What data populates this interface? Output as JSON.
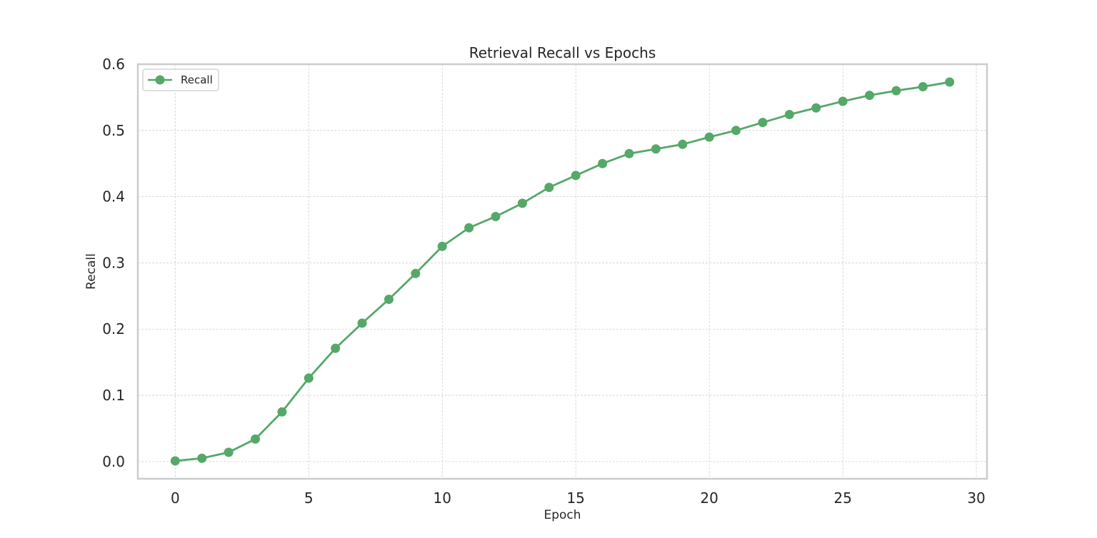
{
  "chart_data": {
    "type": "line",
    "title": "Retrieval Recall vs Epochs",
    "xlabel": "Epoch",
    "ylabel": "Recall",
    "xlim": [
      -1.4,
      30.4
    ],
    "ylim": [
      -0.026,
      0.6
    ],
    "xticks": [
      0,
      5,
      10,
      15,
      20,
      25,
      30
    ],
    "yticks": [
      0.0,
      0.1,
      0.2,
      0.3,
      0.4,
      0.5,
      0.6
    ],
    "ytick_labels": [
      "0.0",
      "0.1",
      "0.2",
      "0.3",
      "0.4",
      "0.5",
      "0.6"
    ],
    "grid": true,
    "legend_position": "top-left",
    "series": [
      {
        "name": "Recall",
        "color": "#55a868",
        "marker": "circle",
        "x": [
          0,
          1,
          2,
          3,
          4,
          5,
          6,
          7,
          8,
          9,
          10,
          11,
          12,
          13,
          14,
          15,
          16,
          17,
          18,
          19,
          20,
          21,
          22,
          23,
          24,
          25,
          26,
          27,
          28,
          29
        ],
        "values": [
          0.001,
          0.005,
          0.014,
          0.034,
          0.075,
          0.126,
          0.171,
          0.209,
          0.245,
          0.284,
          0.325,
          0.353,
          0.37,
          0.39,
          0.414,
          0.432,
          0.45,
          0.465,
          0.472,
          0.479,
          0.49,
          0.5,
          0.512,
          0.524,
          0.534,
          0.544,
          0.553,
          0.56,
          0.566,
          0.573
        ]
      }
    ]
  }
}
